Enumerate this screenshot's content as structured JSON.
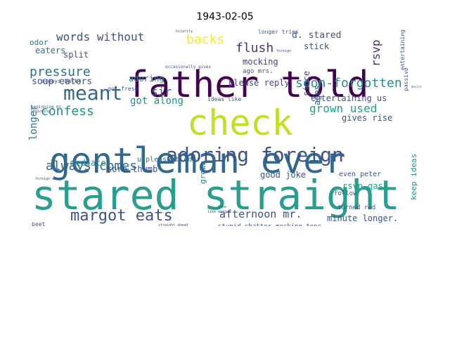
{
  "chart_data": {
    "type": "wordcloud",
    "title": "1943-02-05",
    "words": [
      {
        "text": "stared straight",
        "color": "#2a9d8f",
        "weight": 1.0
      },
      {
        "text": "gentleman ever",
        "color": "#31688e",
        "weight": 0.95
      },
      {
        "text": "father told",
        "color": "#440154",
        "weight": 0.92
      },
      {
        "text": "check",
        "color": "#c2df23",
        "weight": 0.88
      },
      {
        "text": "adoring foreign",
        "color": "#3b528b",
        "weight": 0.6
      },
      {
        "text": "meant",
        "color": "#31688e",
        "weight": 0.55
      },
      {
        "text": "margot eats",
        "color": "#3b528b",
        "weight": 0.5
      },
      {
        "text": "always comes",
        "color": "#31688e",
        "weight": 0.42
      },
      {
        "text": "pressure",
        "color": "#2c728e",
        "weight": 0.4
      },
      {
        "text": "confess",
        "color": "#21918c",
        "weight": 0.4
      },
      {
        "text": "soon-forgotten",
        "color": "#21918c",
        "weight": 0.4
      },
      {
        "text": "words without",
        "color": "#3b528b",
        "weight": 0.38
      },
      {
        "text": "flush",
        "color": "#443983",
        "weight": 0.38
      },
      {
        "text": "backs",
        "color": "#fde725",
        "weight": 0.38
      },
      {
        "text": "grown used",
        "color": "#1fa187",
        "weight": 0.36
      },
      {
        "text": "afternoon mr.",
        "color": "#3b528b",
        "weight": 0.35
      },
      {
        "text": "rsvp",
        "color": "#472d7b",
        "weight": 0.34
      },
      {
        "text": "d. stared",
        "color": "#3b528b",
        "weight": 0.28
      },
      {
        "text": "sir",
        "color": "#31688e",
        "weight": 0.3
      },
      {
        "text": "got along",
        "color": "#21918c",
        "weight": 0.26
      },
      {
        "text": "soup eaters",
        "color": "#3b528b",
        "weight": 0.24
      },
      {
        "text": "mocking",
        "color": "#414487",
        "weight": 0.24
      },
      {
        "text": "adoring",
        "color": "#21918c",
        "weight": 0.22
      },
      {
        "text": "please reply",
        "color": "#414487",
        "weight": 0.22
      },
      {
        "text": "entertaining us",
        "color": "#3b528b",
        "weight": 0.22
      },
      {
        "text": "good joke",
        "color": "#3b528b",
        "weight": 0.22
      },
      {
        "text": "longer",
        "color": "#2c728e",
        "weight": 0.24
      },
      {
        "text": "sore thumb",
        "color": "#3b528b",
        "weight": 0.2
      },
      {
        "text": "mediate",
        "color": "#21918c",
        "weight": 0.2
      },
      {
        "text": "minute longer.",
        "color": "#3b528b",
        "weight": 0.22
      },
      {
        "text": "rsvp—gas",
        "color": "#1f9e89",
        "weight": 0.2
      },
      {
        "text": "even peter",
        "color": "#3b528b",
        "weight": 0.18
      },
      {
        "text": "split",
        "color": "#3b528b",
        "weight": 0.2
      },
      {
        "text": "stick",
        "color": "#3b528b",
        "weight": 0.2
      },
      {
        "text": "eaters",
        "color": "#2c728e",
        "weight": 0.2
      },
      {
        "text": "odor",
        "color": "#2c728e",
        "weight": 0.18
      },
      {
        "text": "gives rise",
        "color": "#3b528b",
        "weight": 0.22
      },
      {
        "text": "since",
        "color": "#414487",
        "weight": 0.22
      },
      {
        "text": "ages",
        "color": "#3b528b",
        "weight": 0.2
      },
      {
        "text": "keep ideas",
        "color": "#21918c",
        "weight": 0.22
      },
      {
        "text": "grown",
        "color": "#2c728e",
        "weight": 0.18
      },
      {
        "text": "unpleasant odor",
        "color": "#2c728e",
        "weight": 0.14
      },
      {
        "text": "stupid chatter",
        "color": "#3b528b",
        "weight": 0.12
      },
      {
        "text": "mocking tone",
        "color": "#3b528b",
        "weight": 0.12
      },
      {
        "text": "turned red",
        "color": "#3b528b",
        "weight": 0.13
      },
      {
        "text": "follow",
        "color": "#31688e",
        "weight": 0.13
      },
      {
        "text": "longer tries",
        "color": "#3b528b",
        "weight": 0.1
      },
      {
        "text": "ideas like",
        "color": "#3b528b",
        "weight": 0.1
      },
      {
        "text": "got fresh",
        "color": "#3b528b",
        "weight": 0.1
      },
      {
        "text": "always backs",
        "color": "#3b528b",
        "weight": 0.1
      },
      {
        "text": "occasionally gives",
        "color": "#3b528b",
        "weight": 0.08
      },
      {
        "text": "ago mrs.",
        "color": "#3b528b",
        "weight": 0.1
      },
      {
        "text": "entertaining",
        "color": "#3b528b",
        "weight": 0.1
      },
      {
        "text": "passive",
        "color": "#3b528b",
        "weight": 0.1
      },
      {
        "text": "beet",
        "color": "#3b528b",
        "weight": 0.1
      },
      {
        "text": "beginning mr.",
        "color": "#3b528b",
        "weight": 0.07
      },
      {
        "text": "beginning",
        "color": "#3b528b",
        "weight": 0.06
      },
      {
        "text": "like margot",
        "color": "#3b528b",
        "weight": 0.06
      },
      {
        "text": "straight ahead",
        "color": "#3b528b",
        "weight": 0.06
      },
      {
        "text": "foreign words",
        "color": "#3b528b",
        "weight": 0.05
      },
      {
        "text": "hilarity",
        "color": "#3b528b",
        "weight": 0.05
      },
      {
        "text": "foreign",
        "color": "#3b528b",
        "weight": 0.05
      },
      {
        "text": "desire",
        "color": "#3b528b",
        "weight": 0.05
      },
      {
        "text": "joke",
        "color": "#3b528b",
        "weight": 0.05
      }
    ]
  }
}
